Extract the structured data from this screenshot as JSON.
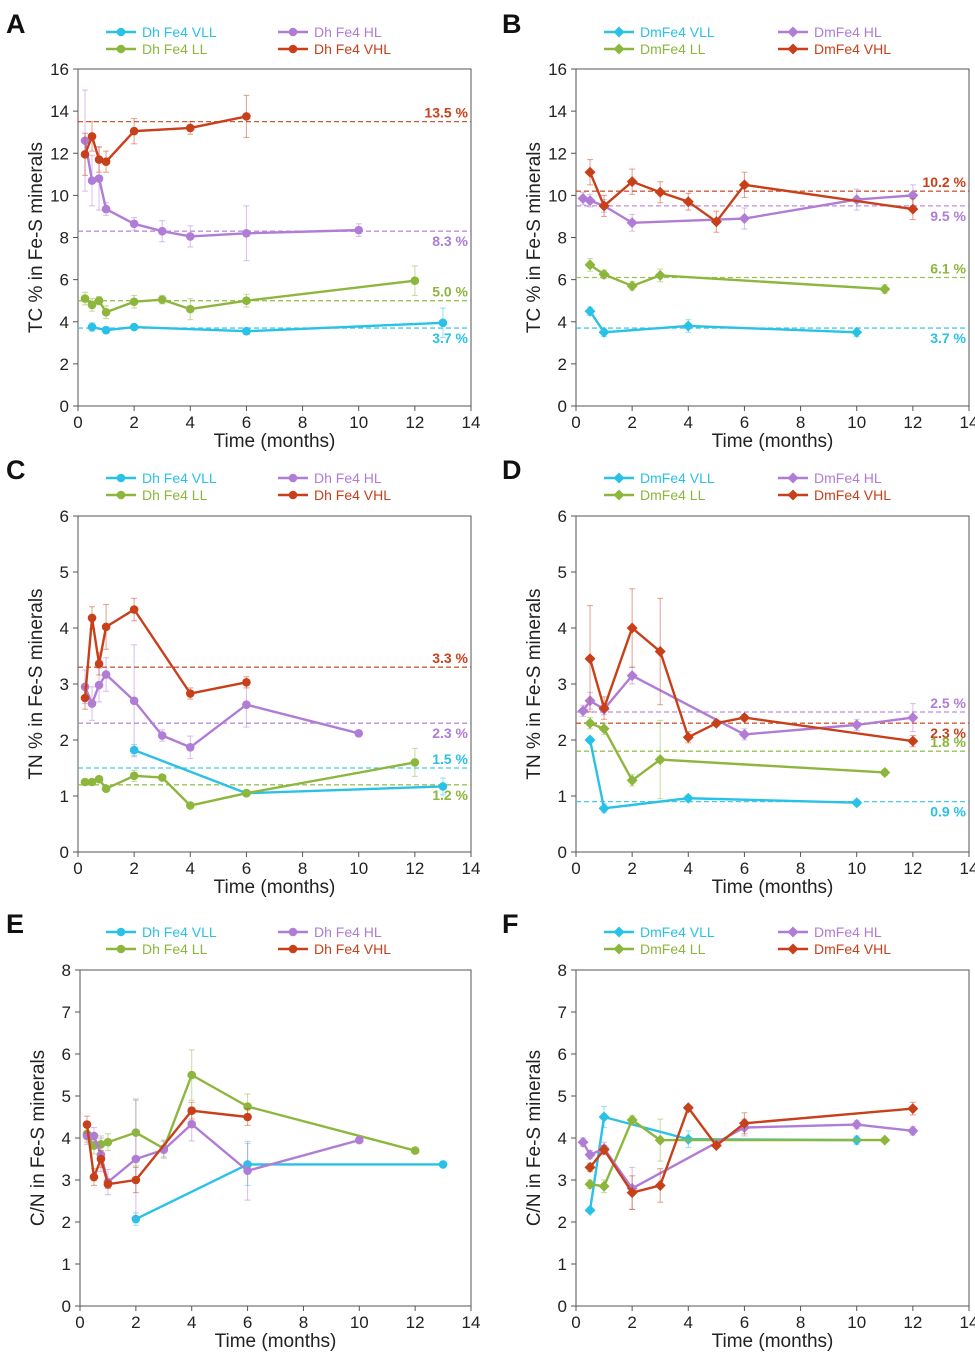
{
  "chart_data": [
    {
      "panel": "A",
      "type": "line",
      "marker": "circle",
      "xlabel": "Time (months)",
      "ylabel": "TC % in Fe-S minerals",
      "xlim": [
        0,
        14
      ],
      "ylim": [
        0,
        16
      ],
      "xticks": [
        0,
        2,
        4,
        6,
        8,
        10,
        12,
        14
      ],
      "yticks": [
        0,
        2,
        4,
        6,
        8,
        10,
        12,
        14,
        16
      ],
      "legend_placement": "top",
      "series": [
        {
          "name": "Dh Fe4 VLL",
          "color": "#29c2e6",
          "x": [
            0.5,
            1,
            2,
            6,
            13
          ],
          "y": [
            3.75,
            3.6,
            3.75,
            3.55,
            3.95
          ],
          "err": [
            0.2,
            0.15,
            0.1,
            0.15,
            0.7
          ]
        },
        {
          "name": "Dh Fe4 LL",
          "color": "#8db63c",
          "x": [
            0.25,
            0.5,
            0.75,
            1,
            2,
            3,
            4,
            6,
            12
          ],
          "y": [
            5.1,
            4.8,
            5.0,
            4.45,
            4.95,
            5.05,
            4.6,
            5.0,
            5.95
          ],
          "err": [
            0.3,
            0.3,
            0.2,
            0.3,
            0.3,
            0.2,
            0.5,
            0.3,
            0.7
          ]
        },
        {
          "name": "Dh Fe4 HL",
          "color": "#b07cd6",
          "x": [
            0.25,
            0.5,
            0.75,
            1,
            2,
            3,
            4,
            6,
            10
          ],
          "y": [
            12.6,
            10.7,
            10.8,
            9.35,
            8.65,
            8.3,
            8.05,
            8.2,
            8.35
          ],
          "err": [
            2.4,
            1.2,
            1.5,
            0.3,
            0.3,
            0.5,
            0.5,
            1.3,
            0.3
          ]
        },
        {
          "name": "Dh Fe4 VHL",
          "color": "#c8401a",
          "x": [
            0.25,
            0.5,
            0.75,
            1,
            2,
            4,
            6
          ],
          "y": [
            11.95,
            12.8,
            11.7,
            11.6,
            13.05,
            13.2,
            13.75
          ],
          "err": [
            1.0,
            0.7,
            0.6,
            0.5,
            0.6,
            0.3,
            1.0
          ]
        }
      ],
      "reference_lines": [
        {
          "value": 13.5,
          "label": "13.5 %",
          "color": "#c8401a"
        },
        {
          "value": 8.3,
          "label": "8.3 %",
          "color": "#b07cd6"
        },
        {
          "value": 5.0,
          "label": "5.0 %",
          "color": "#8db63c"
        },
        {
          "value": 3.7,
          "label": "3.7 %",
          "color": "#29c2e6"
        }
      ]
    },
    {
      "panel": "B",
      "type": "line",
      "marker": "diamond",
      "xlabel": "Time (months)",
      "ylabel": "TC % in Fe-S minerals",
      "xlim": [
        0,
        14
      ],
      "ylim": [
        0,
        16
      ],
      "xticks": [
        0,
        2,
        4,
        6,
        8,
        10,
        12,
        14
      ],
      "yticks": [
        0,
        2,
        4,
        6,
        8,
        10,
        12,
        14,
        16
      ],
      "legend_placement": "top",
      "series": [
        {
          "name": "DmFe4 VLL",
          "color": "#29c2e6",
          "x": [
            0.5,
            1,
            4,
            10
          ],
          "y": [
            4.5,
            3.5,
            3.8,
            3.5
          ],
          "err": [
            0.2,
            0.2,
            0.3,
            0.2
          ]
        },
        {
          "name": "DmFe4 LL",
          "color": "#8db63c",
          "x": [
            0.5,
            1,
            2,
            3,
            11
          ],
          "y": [
            6.7,
            6.25,
            5.7,
            6.2,
            5.55
          ],
          "err": [
            0.3,
            0.2,
            0.2,
            0.3,
            0.2
          ]
        },
        {
          "name": "DmFe4 HL",
          "color": "#b07cd6",
          "x": [
            0.25,
            0.5,
            1,
            2,
            6,
            10,
            12
          ],
          "y": [
            9.85,
            9.75,
            9.5,
            8.7,
            8.9,
            9.8,
            10.0
          ],
          "err": [
            0.3,
            0.3,
            0.3,
            0.4,
            0.5,
            0.5,
            0.5
          ]
        },
        {
          "name": "DmFe4 VHL",
          "color": "#c8401a",
          "x": [
            0.5,
            1,
            2,
            3,
            4,
            5,
            6,
            12
          ],
          "y": [
            11.1,
            9.5,
            10.65,
            10.15,
            9.7,
            8.75,
            10.5,
            9.35
          ],
          "err": [
            0.6,
            0.5,
            0.6,
            0.5,
            0.4,
            0.5,
            0.6,
            0.5
          ]
        }
      ],
      "reference_lines": [
        {
          "value": 10.2,
          "label": "10.2 %",
          "color": "#c8401a"
        },
        {
          "value": 9.5,
          "label": "9.5 %",
          "color": "#b07cd6"
        },
        {
          "value": 6.1,
          "label": "6.1 %",
          "color": "#8db63c"
        },
        {
          "value": 3.7,
          "label": "3.7 %",
          "color": "#29c2e6"
        }
      ]
    },
    {
      "panel": "C",
      "type": "line",
      "marker": "circle",
      "xlabel": "Time (months)",
      "ylabel": "TN % in Fe-S minerals",
      "xlim": [
        0,
        14
      ],
      "ylim": [
        0,
        6
      ],
      "xticks": [
        0,
        2,
        4,
        6,
        8,
        10,
        12,
        14
      ],
      "yticks": [
        0,
        1,
        2,
        3,
        4,
        5,
        6
      ],
      "legend_placement": "top",
      "series": [
        {
          "name": "Dh Fe4 VLL",
          "color": "#29c2e6",
          "x": [
            2,
            6,
            13
          ],
          "y": [
            1.82,
            1.05,
            1.17
          ],
          "err": [
            0.1,
            0.05,
            0.15
          ]
        },
        {
          "name": "Dh Fe4 LL",
          "color": "#8db63c",
          "x": [
            0.25,
            0.5,
            0.75,
            1,
            2,
            3,
            4,
            6,
            12
          ],
          "y": [
            1.25,
            1.25,
            1.3,
            1.13,
            1.36,
            1.33,
            0.83,
            1.05,
            1.6
          ],
          "err": [
            0.05,
            0.05,
            0.05,
            0.05,
            0.1,
            0.05,
            0.05,
            0.05,
            0.25
          ]
        },
        {
          "name": "Dh Fe4 HL",
          "color": "#b07cd6",
          "x": [
            0.25,
            0.5,
            0.75,
            1,
            2,
            3,
            4,
            6,
            10
          ],
          "y": [
            2.95,
            2.65,
            2.98,
            3.17,
            2.7,
            2.08,
            1.87,
            2.63,
            2.12
          ],
          "err": [
            0.3,
            0.3,
            0.3,
            0.3,
            1.0,
            0.1,
            0.2,
            0.4,
            0.05
          ]
        },
        {
          "name": "Dh Fe4 VHL",
          "color": "#c8401a",
          "x": [
            0.25,
            0.5,
            0.75,
            1,
            2,
            4,
            6
          ],
          "y": [
            2.75,
            4.18,
            3.36,
            4.02,
            4.33,
            2.83,
            3.03
          ],
          "err": [
            0.2,
            0.2,
            0.2,
            0.4,
            0.2,
            0.1,
            0.1
          ]
        }
      ],
      "reference_lines": [
        {
          "value": 3.3,
          "label": "3.3 %",
          "color": "#c8401a"
        },
        {
          "value": 2.3,
          "label": "2.3 %",
          "color": "#b07cd6"
        },
        {
          "value": 1.5,
          "label": "1.5 %",
          "color": "#29c2e6"
        },
        {
          "value": 1.2,
          "label": "1.2 %",
          "color": "#8db63c"
        }
      ]
    },
    {
      "panel": "D",
      "type": "line",
      "marker": "diamond",
      "xlabel": "Time (months)",
      "ylabel": "TN % in Fe-S minerals",
      "xlim": [
        0,
        14
      ],
      "ylim": [
        0,
        6
      ],
      "xticks": [
        0,
        2,
        4,
        6,
        8,
        10,
        12,
        14
      ],
      "yticks": [
        0,
        1,
        2,
        3,
        4,
        5,
        6
      ],
      "legend_placement": "top",
      "series": [
        {
          "name": "DmFe4 VLL",
          "color": "#29c2e6",
          "x": [
            0.5,
            1,
            4,
            10
          ],
          "y": [
            2.0,
            0.78,
            0.96,
            0.88
          ],
          "err": [
            0.05,
            0.08,
            0.05,
            0.05
          ]
        },
        {
          "name": "DmFe4 LL",
          "color": "#8db63c",
          "x": [
            0.5,
            1,
            2,
            3,
            11
          ],
          "y": [
            2.3,
            2.2,
            1.28,
            1.65,
            1.42
          ],
          "err": [
            0.1,
            0.1,
            0.1,
            0.7,
            0.05
          ]
        },
        {
          "name": "DmFe4 HL",
          "color": "#b07cd6",
          "x": [
            0.25,
            0.5,
            1,
            2,
            6,
            10,
            12
          ],
          "y": [
            2.52,
            2.7,
            2.55,
            3.15,
            2.1,
            2.27,
            2.4
          ],
          "err": [
            0.1,
            0.15,
            0.1,
            0.15,
            0.1,
            0.1,
            0.25
          ]
        },
        {
          "name": "DmFe4 VHL",
          "color": "#c8401a",
          "x": [
            0.5,
            1,
            2,
            3,
            4,
            5,
            6,
            12
          ],
          "y": [
            3.45,
            2.57,
            4.0,
            3.58,
            2.05,
            2.3,
            2.4,
            1.98
          ],
          "err": [
            0.95,
            0.2,
            0.7,
            0.95,
            0.1,
            0.05,
            0.05,
            0.1
          ]
        }
      ],
      "reference_lines": [
        {
          "value": 2.5,
          "label": "2.5 %",
          "color": "#b07cd6"
        },
        {
          "value": 2.3,
          "label": "2.3 %",
          "color": "#c8401a"
        },
        {
          "value": 1.8,
          "label": "1.8 %",
          "color": "#8db63c"
        },
        {
          "value": 0.9,
          "label": "0.9 %",
          "color": "#29c2e6"
        }
      ]
    },
    {
      "panel": "E",
      "type": "line",
      "marker": "circle",
      "xlabel": "Time (months)",
      "ylabel": "C/N in Fe-S minerals",
      "xlim": [
        0,
        14
      ],
      "ylim": [
        0,
        8
      ],
      "xticks": [
        0,
        2,
        4,
        6,
        8,
        10,
        12,
        14
      ],
      "yticks": [
        0,
        1,
        2,
        3,
        4,
        5,
        6,
        7,
        8
      ],
      "legend_placement": "top",
      "series": [
        {
          "name": "Dh Fe4 VLL",
          "color": "#29c2e6",
          "x": [
            2,
            6,
            13
          ],
          "y": [
            2.07,
            3.37,
            3.37
          ],
          "err": [
            0.15,
            0.5,
            0.05
          ]
        },
        {
          "name": "Dh Fe4 LL",
          "color": "#8db63c",
          "x": [
            0.25,
            0.5,
            0.75,
            1,
            2,
            3,
            4,
            6,
            12
          ],
          "y": [
            4.1,
            3.82,
            3.85,
            3.9,
            4.13,
            3.75,
            5.5,
            4.75,
            3.7
          ],
          "err": [
            0.2,
            0.2,
            0.2,
            0.2,
            0.8,
            0.2,
            0.6,
            0.3,
            0.05
          ]
        },
        {
          "name": "Dh Fe4 HL",
          "color": "#b07cd6",
          "x": [
            0.25,
            0.5,
            0.75,
            1,
            2,
            3,
            4,
            6,
            10
          ],
          "y": [
            4.05,
            4.05,
            3.6,
            2.95,
            3.5,
            3.72,
            4.33,
            3.22,
            3.95
          ],
          "err": [
            0.2,
            0.2,
            0.4,
            0.3,
            1.4,
            0.2,
            0.4,
            0.7,
            0.05
          ]
        },
        {
          "name": "Dh Fe4 VHL",
          "color": "#c8401a",
          "x": [
            0.25,
            0.5,
            0.75,
            1,
            2,
            4,
            6
          ],
          "y": [
            4.32,
            3.07,
            3.5,
            2.9,
            3.0,
            4.65,
            4.5
          ],
          "err": [
            0.2,
            0.2,
            0.2,
            0.1,
            0.3,
            0.2,
            0.2
          ]
        }
      ]
    },
    {
      "panel": "F",
      "type": "line",
      "marker": "diamond",
      "xlabel": "Time (months)",
      "ylabel": "C/N in Fe-S minerals",
      "xlim": [
        0,
        14
      ],
      "ylim": [
        0,
        8
      ],
      "xticks": [
        0,
        2,
        4,
        6,
        8,
        10,
        12,
        14
      ],
      "yticks": [
        0,
        1,
        2,
        3,
        4,
        5,
        6,
        7,
        8
      ],
      "legend_placement": "top",
      "series": [
        {
          "name": "DmFe4 VLL",
          "color": "#29c2e6",
          "x": [
            0.5,
            1,
            4,
            10
          ],
          "y": [
            2.28,
            4.5,
            3.97,
            3.95
          ],
          "err": [
            0.05,
            0.25,
            0.2,
            0.1
          ]
        },
        {
          "name": "DmFe4 LL",
          "color": "#8db63c",
          "x": [
            0.5,
            1,
            2,
            3,
            11
          ],
          "y": [
            2.9,
            2.85,
            4.43,
            3.95,
            3.95
          ],
          "err": [
            0.1,
            0.15,
            0.1,
            0.5,
            0.05
          ]
        },
        {
          "name": "DmFe4 HL",
          "color": "#b07cd6",
          "x": [
            0.25,
            0.5,
            1,
            2,
            6,
            10,
            12
          ],
          "y": [
            3.9,
            3.6,
            3.75,
            2.8,
            4.25,
            4.32,
            4.17
          ],
          "err": [
            0.1,
            0.1,
            0.15,
            0.5,
            0.2,
            0.1,
            0.1
          ]
        },
        {
          "name": "DmFe4 VHL",
          "color": "#c8401a",
          "x": [
            0.5,
            1,
            2,
            3,
            4,
            5,
            6,
            12
          ],
          "y": [
            3.3,
            3.72,
            2.7,
            2.87,
            4.72,
            3.82,
            4.35,
            4.7
          ],
          "err": [
            0.1,
            0.1,
            0.4,
            0.4,
            0.05,
            0.05,
            0.25,
            0.15
          ]
        }
      ]
    }
  ]
}
